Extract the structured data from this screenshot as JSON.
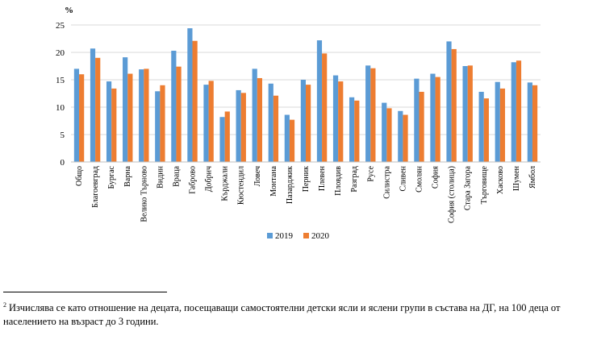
{
  "chart_data": {
    "type": "bar",
    "ylabel": "%",
    "ylim": [
      0,
      25
    ],
    "yticks": [
      0,
      5,
      10,
      15,
      20,
      25
    ],
    "grid": true,
    "legend_position": "bottom",
    "categories": [
      "Общо",
      "Благоевград",
      "Бургас",
      "Варна",
      "Велико Търново",
      "Видин",
      "Враца",
      "Габрово",
      "Добрич",
      "Кърджали",
      "Кюстендил",
      "Ловеч",
      "Монтана",
      "Пазарджик",
      "Перник",
      "Плевен",
      "Пловдив",
      "Разград",
      "Русе",
      "Силистра",
      "Сливен",
      "Смолян",
      "София",
      "София (столица)",
      "Стара Загора",
      "Търговище",
      "Хасково",
      "Шумен",
      "Ямбол"
    ],
    "series": [
      {
        "name": "2019",
        "color": "#5b9bd5",
        "values": [
          17.0,
          20.7,
          14.7,
          19.1,
          16.9,
          12.9,
          20.3,
          24.4,
          14.1,
          8.2,
          13.1,
          17.0,
          14.3,
          8.6,
          15.0,
          22.2,
          15.8,
          11.8,
          17.6,
          10.8,
          9.3,
          15.2,
          16.1,
          22.0,
          17.5,
          12.8,
          14.6,
          18.2,
          14.5
        ]
      },
      {
        "name": "2020",
        "color": "#ed7d31",
        "values": [
          16.0,
          19.0,
          13.4,
          16.1,
          17.0,
          14.0,
          17.4,
          22.1,
          14.8,
          9.2,
          12.6,
          15.3,
          12.1,
          7.7,
          14.1,
          19.8,
          14.7,
          11.2,
          17.1,
          9.8,
          8.6,
          12.8,
          15.5,
          20.6,
          17.6,
          11.6,
          13.4,
          18.5,
          14.0
        ]
      }
    ]
  },
  "footnote": {
    "number": "2",
    "text": "Изчислява се като отношение на децата, посещаващи самостоятелни детски ясли и яслени групи в състава на ДГ, на 100 деца от населението на възраст до 3 години."
  }
}
